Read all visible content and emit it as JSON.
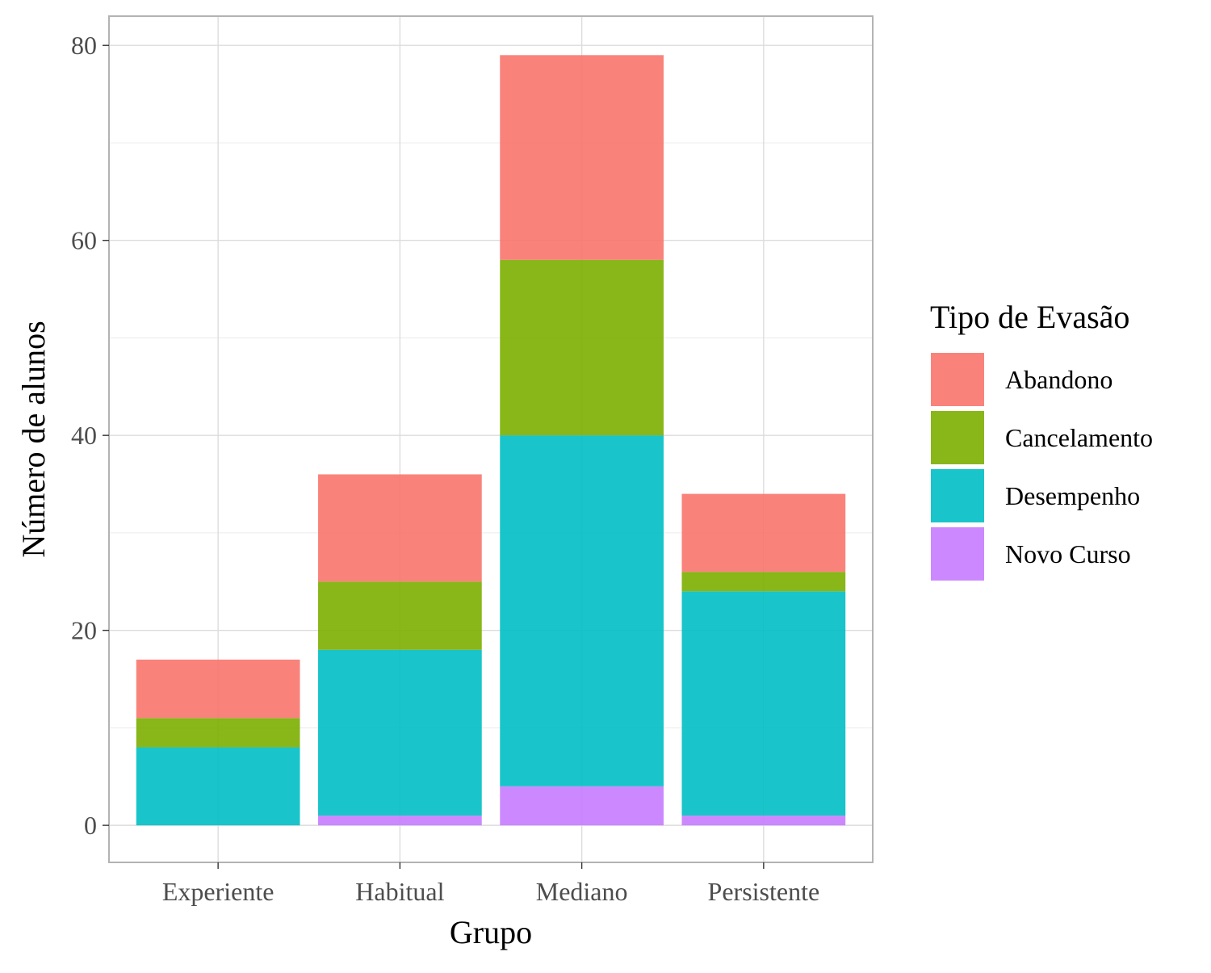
{
  "chart_data": {
    "type": "bar",
    "stacked": true,
    "categories": [
      "Experiente",
      "Habitual",
      "Mediano",
      "Persistente"
    ],
    "series": [
      {
        "name": "Novo Curso",
        "color": "#C77CFF",
        "values": [
          0,
          1,
          4,
          1
        ]
      },
      {
        "name": "Desempenho",
        "color": "#00BFC4",
        "values": [
          8,
          17,
          36,
          23
        ]
      },
      {
        "name": "Cancelamento",
        "color": "#7CAE00",
        "values": [
          3,
          7,
          18,
          2
        ]
      },
      {
        "name": "Abandono",
        "color": "#F8766D",
        "values": [
          6,
          11,
          21,
          8
        ]
      }
    ],
    "legend_order": [
      "Abandono",
      "Cancelamento",
      "Desempenho",
      "Novo Curso"
    ],
    "title": "",
    "xlabel": "Grupo",
    "ylabel": "Número de alunos",
    "legend_title": "Tipo de Evasão",
    "legend_position": "right",
    "ylim": [
      -3.8,
      83
    ],
    "yticks": [
      0,
      20,
      40,
      60,
      80
    ],
    "grid": true
  }
}
